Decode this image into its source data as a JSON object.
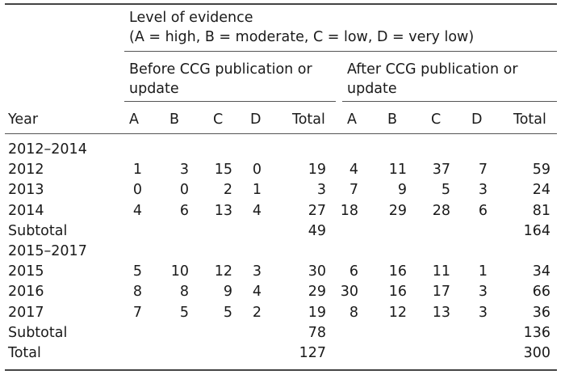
{
  "header": {
    "year_label": "Year",
    "level_title": "Level of evidence",
    "level_subtitle": "(A = high, B = moderate, C = low, D = very low)",
    "before_line1": "Before CCG publication or",
    "before_line2": "update",
    "after_line1": "After CCG publication or",
    "after_line2": "update",
    "cols": [
      "A",
      "B",
      "C",
      "D",
      "Total"
    ]
  },
  "rows": [
    {
      "type": "group",
      "year": "2012–2014"
    },
    {
      "type": "data",
      "year": "2012",
      "before": [
        "1",
        "3",
        "15",
        "0",
        "19"
      ],
      "after": [
        "4",
        "11",
        "37",
        "7",
        "59"
      ]
    },
    {
      "type": "data",
      "year": "2013",
      "before": [
        "0",
        "0",
        "2",
        "1",
        "3"
      ],
      "after": [
        "7",
        "9",
        "5",
        "3",
        "24"
      ]
    },
    {
      "type": "data",
      "year": "2014",
      "before": [
        "4",
        "6",
        "13",
        "4",
        "27"
      ],
      "after": [
        "18",
        "29",
        "28",
        "6",
        "81"
      ]
    },
    {
      "type": "subtotal",
      "year": "Subtotal",
      "before_total": "49",
      "after_total": "164"
    },
    {
      "type": "group",
      "year": "2015–2017"
    },
    {
      "type": "data",
      "year": "2015",
      "before": [
        "5",
        "10",
        "12",
        "3",
        "30"
      ],
      "after": [
        "6",
        "16",
        "11",
        "1",
        "34"
      ]
    },
    {
      "type": "data",
      "year": "2016",
      "before": [
        "8",
        "8",
        "9",
        "4",
        "29"
      ],
      "after": [
        "30",
        "16",
        "17",
        "3",
        "66"
      ]
    },
    {
      "type": "data",
      "year": "2017",
      "before": [
        "7",
        "5",
        "5",
        "2",
        "19"
      ],
      "after": [
        "8",
        "12",
        "13",
        "3",
        "36"
      ]
    },
    {
      "type": "subtotal",
      "year": "Subtotal",
      "before_total": "78",
      "after_total": "136"
    },
    {
      "type": "subtotal",
      "year": "Total",
      "before_total": "127",
      "after_total": "300"
    }
  ]
}
